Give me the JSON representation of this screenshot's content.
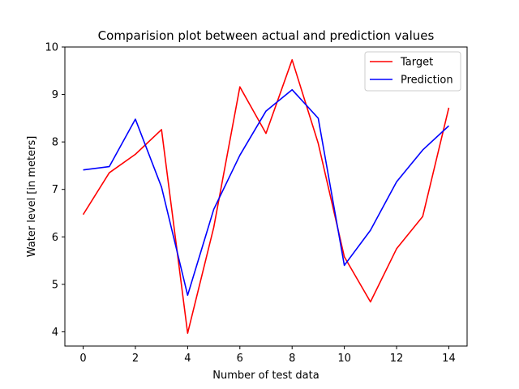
{
  "chart_data": {
    "type": "line",
    "title": "Comparision plot between actual and prediction values",
    "xlabel": "Number of test data",
    "ylabel": "Water level [in meters]",
    "x": [
      0,
      1,
      2,
      3,
      4,
      5,
      6,
      7,
      8,
      9,
      10,
      11,
      12,
      13,
      14
    ],
    "xlim": [
      -0.7,
      14.7
    ],
    "ylim": [
      3.7,
      10.0
    ],
    "xticks": [
      0,
      2,
      4,
      6,
      8,
      10,
      12,
      14
    ],
    "yticks": [
      4,
      5,
      6,
      7,
      8,
      9,
      10
    ],
    "grid": false,
    "legend_position": "top-right",
    "series": [
      {
        "name": "Target",
        "color": "#ff0000",
        "values": [
          6.47,
          7.35,
          7.74,
          8.26,
          3.97,
          6.2,
          9.16,
          8.18,
          9.73,
          7.97,
          5.58,
          4.63,
          5.75,
          6.43,
          8.72
        ]
      },
      {
        "name": "Prediction",
        "color": "#0000ff",
        "values": [
          7.41,
          7.48,
          8.48,
          7.05,
          4.77,
          6.58,
          7.72,
          8.65,
          9.1,
          8.5,
          5.4,
          6.14,
          7.16,
          7.83,
          8.34
        ]
      }
    ]
  }
}
